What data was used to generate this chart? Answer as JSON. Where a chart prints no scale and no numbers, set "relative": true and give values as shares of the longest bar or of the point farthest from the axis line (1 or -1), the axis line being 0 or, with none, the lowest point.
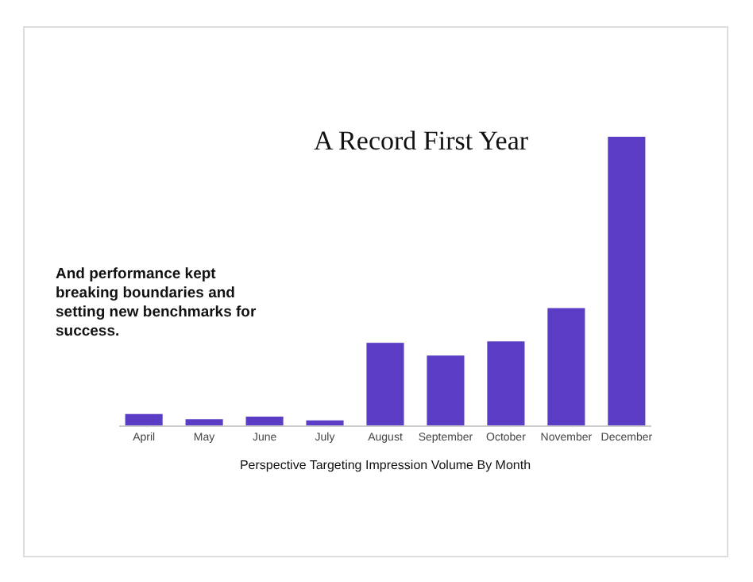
{
  "chart_data": {
    "type": "bar",
    "title": "A Record First Year",
    "xlabel": "Perspective Targeting Impression Volume By Month",
    "categories": [
      "April",
      "May",
      "June",
      "July",
      "August",
      "September",
      "October",
      "November",
      "December"
    ],
    "values": [
      0.042,
      0.024,
      0.033,
      0.02,
      0.288,
      0.244,
      0.293,
      0.408,
      1
    ],
    "color": "#5b3cc4",
    "relative": true,
    "annotations": [
      "And performance kept breaking boundaries and setting new benchmarks for success."
    ]
  }
}
